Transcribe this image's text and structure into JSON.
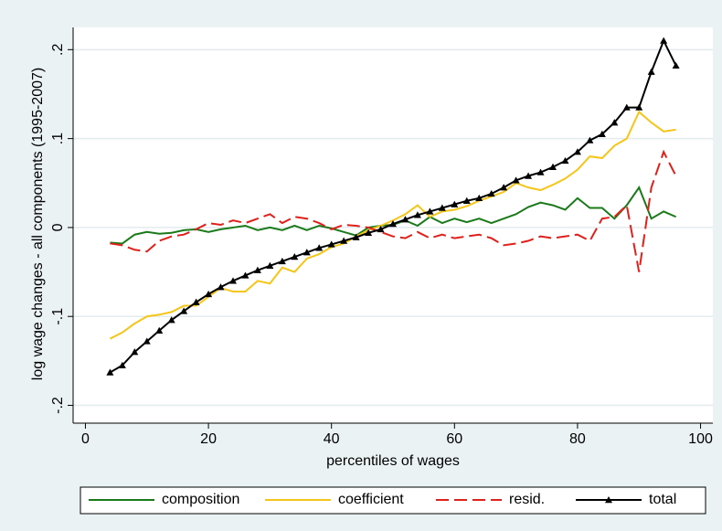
{
  "chart_data": {
    "type": "line",
    "x_label": "percentiles of wages",
    "y_label": "log wage changes - all components (1995-2007)",
    "x": [
      4,
      6,
      8,
      10,
      12,
      14,
      16,
      18,
      20,
      22,
      24,
      26,
      28,
      30,
      32,
      34,
      36,
      38,
      40,
      42,
      44,
      46,
      48,
      50,
      52,
      54,
      56,
      58,
      60,
      62,
      64,
      66,
      68,
      70,
      72,
      74,
      76,
      78,
      80,
      82,
      84,
      86,
      88,
      90,
      92,
      94,
      96
    ],
    "series": [
      {
        "name": "composition",
        "color": "#1a7a1a",
        "style": "solid",
        "marker": "none",
        "values": [
          -0.017,
          -0.018,
          -0.008,
          -0.005,
          -0.007,
          -0.006,
          -0.003,
          -0.002,
          -0.005,
          -0.002,
          0.0,
          0.002,
          -0.003,
          0.0,
          -0.003,
          0.002,
          -0.003,
          0.002,
          -0.001,
          -0.005,
          -0.009,
          0.0,
          0.002,
          0.003,
          0.008,
          0.002,
          0.012,
          0.005,
          0.01,
          0.006,
          0.01,
          0.005,
          0.01,
          0.015,
          0.023,
          0.028,
          0.025,
          0.02,
          0.033,
          0.022,
          0.022,
          0.01,
          0.025,
          0.045,
          0.01,
          0.018,
          0.012
        ]
      },
      {
        "name": "coefficient",
        "color": "#f5c518",
        "style": "solid",
        "marker": "none",
        "values": [
          -0.125,
          -0.118,
          -0.108,
          -0.1,
          -0.098,
          -0.095,
          -0.088,
          -0.088,
          -0.078,
          -0.068,
          -0.072,
          -0.072,
          -0.06,
          -0.063,
          -0.045,
          -0.05,
          -0.035,
          -0.03,
          -0.022,
          -0.018,
          -0.01,
          -0.003,
          0.002,
          0.008,
          0.015,
          0.025,
          0.012,
          0.018,
          0.02,
          0.024,
          0.03,
          0.035,
          0.04,
          0.05,
          0.045,
          0.042,
          0.048,
          0.055,
          0.065,
          0.08,
          0.078,
          0.092,
          0.1,
          0.13,
          0.118,
          0.108,
          0.11
        ]
      },
      {
        "name": "resid.",
        "color": "#e0201b",
        "style": "dashed",
        "marker": "none",
        "values": [
          -0.018,
          -0.02,
          -0.025,
          -0.027,
          -0.015,
          -0.01,
          -0.008,
          -0.002,
          0.005,
          0.003,
          0.008,
          0.005,
          0.01,
          0.015,
          0.005,
          0.012,
          0.01,
          0.005,
          -0.002,
          0.003,
          0.002,
          0.0,
          -0.005,
          -0.01,
          -0.012,
          -0.005,
          -0.012,
          -0.008,
          -0.012,
          -0.01,
          -0.008,
          -0.012,
          -0.02,
          -0.018,
          -0.015,
          -0.01,
          -0.012,
          -0.01,
          -0.008,
          -0.015,
          0.01,
          0.012,
          0.025,
          -0.05,
          0.045,
          0.085,
          0.058
        ]
      },
      {
        "name": "total",
        "color": "#000000",
        "style": "solid",
        "marker": "triangle",
        "values": [
          -0.163,
          -0.155,
          -0.14,
          -0.128,
          -0.116,
          -0.104,
          -0.094,
          -0.084,
          -0.075,
          -0.067,
          -0.06,
          -0.054,
          -0.048,
          -0.043,
          -0.038,
          -0.033,
          -0.028,
          -0.023,
          -0.019,
          -0.015,
          -0.011,
          -0.006,
          -0.002,
          0.004,
          0.009,
          0.014,
          0.018,
          0.022,
          0.026,
          0.03,
          0.033,
          0.038,
          0.045,
          0.053,
          0.058,
          0.062,
          0.068,
          0.075,
          0.085,
          0.098,
          0.105,
          0.118,
          0.135,
          0.135,
          0.175,
          0.21,
          0.182
        ]
      }
    ],
    "xlim": [
      -2,
      102
    ],
    "xticks": [
      0,
      20,
      40,
      60,
      80,
      100
    ],
    "ylim": [
      -0.22,
      0.225
    ],
    "yticks": [
      {
        "value": -0.2,
        "label": "-.2"
      },
      {
        "value": -0.1,
        "label": "-.1"
      },
      0,
      {
        "value": 0.1,
        "label": ".1"
      },
      {
        "value": 0.2,
        "label": ".2"
      }
    ],
    "grid": true,
    "legend": "bottom"
  }
}
